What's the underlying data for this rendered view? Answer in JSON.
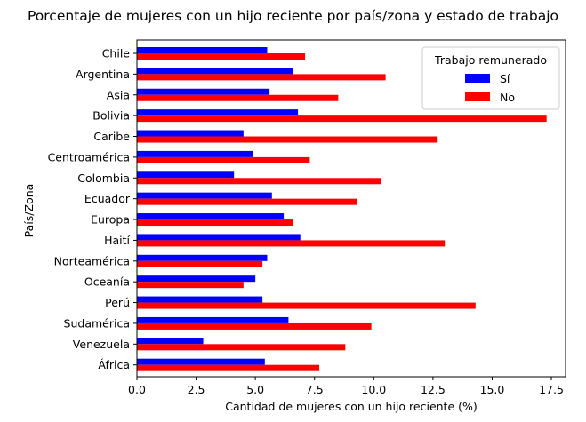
{
  "chart_data": {
    "type": "bar",
    "orientation": "horizontal",
    "title": "Porcentaje de mujeres con un hijo reciente por país/zona y estado de trabajo",
    "xlabel": "Cantidad de mujeres con un hijo reciente (%)",
    "ylabel": "País/Zona",
    "xlim": [
      0,
      18.1
    ],
    "xticks": [
      "0.0",
      "2.5",
      "5.0",
      "7.5",
      "10.0",
      "12.5",
      "15.0",
      "17.5"
    ],
    "xtick_values": [
      0,
      2.5,
      5,
      7.5,
      10,
      12.5,
      15,
      17.5
    ],
    "grid": false,
    "categories": [
      "Chile",
      "Argentina",
      "Asia",
      "Bolivia",
      "Caribe",
      "Centroamérica",
      "Colombia",
      "Ecuador",
      "Europa",
      "Haití",
      "Norteamérica",
      "Oceanía",
      "Perú",
      "Sudamérica",
      "Venezuela",
      "África"
    ],
    "legend": {
      "title": "Trabajo remunerado",
      "position": "top-right"
    },
    "series": [
      {
        "name": "Sí",
        "color": "#0000ff",
        "values": [
          5.5,
          6.6,
          5.6,
          6.8,
          4.5,
          4.9,
          4.1,
          5.7,
          6.2,
          6.9,
          5.5,
          5.0,
          5.3,
          6.4,
          2.8,
          5.4
        ]
      },
      {
        "name": "No",
        "color": "#ff0000",
        "values": [
          7.1,
          10.5,
          8.5,
          17.3,
          12.7,
          7.3,
          10.3,
          9.3,
          6.6,
          13.0,
          5.3,
          4.5,
          14.3,
          9.9,
          8.8,
          7.7
        ]
      }
    ]
  }
}
